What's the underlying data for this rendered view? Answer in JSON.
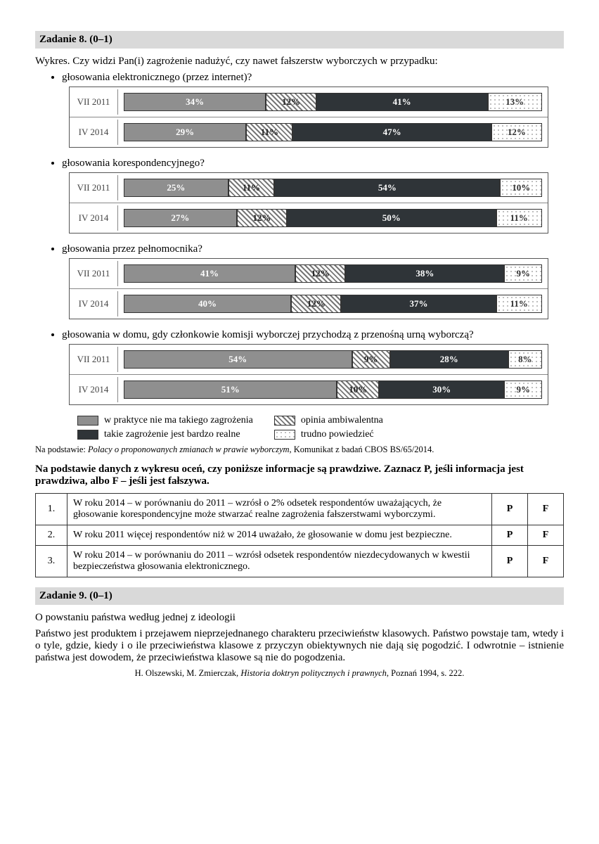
{
  "task8": {
    "header": "Zadanie 8. (0–1)",
    "intro": "Wykres. Czy widzi Pan(i) zagrożenie nadużyć, czy nawet fałszerstw wyborczych w przypadku:",
    "charts": [
      {
        "question": "głosowania elektronicznego (przez internet)?",
        "rows": [
          {
            "label": "VII 2011",
            "vals": [
              34,
              12,
              41,
              13
            ]
          },
          {
            "label": "IV 2014",
            "vals": [
              29,
              11,
              47,
              12
            ]
          }
        ]
      },
      {
        "question": "głosowania korespondencyjnego?",
        "rows": [
          {
            "label": "VII 2011",
            "vals": [
              25,
              11,
              54,
              10
            ]
          },
          {
            "label": "IV 2014",
            "vals": [
              27,
              12,
              50,
              11
            ]
          }
        ]
      },
      {
        "question": "głosowania przez pełnomocnika?",
        "rows": [
          {
            "label": "VII 2011",
            "vals": [
              41,
              12,
              38,
              9
            ]
          },
          {
            "label": "IV 2014",
            "vals": [
              40,
              12,
              37,
              11
            ]
          }
        ]
      },
      {
        "question": "głosowania w domu, gdy członkowie komisji wyborczej przychodzą z przenośną urną wyborczą?",
        "rows": [
          {
            "label": "VII 2011",
            "vals": [
              54,
              9,
              28,
              8
            ]
          },
          {
            "label": "IV 2014",
            "vals": [
              51,
              10,
              30,
              9
            ]
          }
        ]
      }
    ],
    "legend": {
      "a": "w praktyce nie ma takiego zagrożenia",
      "b": "opinia ambiwalentna",
      "c": "takie zagrożenie jest bardzo realne",
      "d": "trudno powiedzieć"
    },
    "source_prefix": "Na podstawie: ",
    "source_italic": "Polacy o proponowanych zmianach w prawie wyborczym",
    "source_suffix": ", Komunikat z badań CBOS BS/65/2014.",
    "instruction": "Na podstawie danych z wykresu oceń, czy poniższe informacje są prawdziwe. Zaznacz P, jeśli informacja jest prawdziwa, albo F – jeśli jest fałszywa.",
    "table": [
      "W roku 2014 – w porównaniu do 2011 – wzrósł o 2% odsetek respondentów uważających, że głosowanie korespondencyjne może stwarzać realne zagrożenia fałszerstwami wyborczymi.",
      "W roku 2011 więcej respondentów niż w 2014 uważało, że głosowanie w domu jest bezpieczne.",
      "W roku 2014 – w porównaniu do 2011 – wzrósł odsetek respondentów niezdecydowanych w kwestii bezpieczeństwa głosowania elektronicznego."
    ],
    "p": "P",
    "f": "F"
  },
  "task9": {
    "header": "Zadanie 9. (0–1)",
    "title": "O powstaniu państwa według jednej z ideologii",
    "body": "Państwo jest produktem i przejawem nieprzejednanego charakteru przeciwieństw klasowych. Państwo powstaje tam, wtedy i o tyle, gdzie, kiedy i o ile przeciwieństwa klasowe z przyczyn obiektywnych nie dają się pogodzić. I odwrotnie – istnienie państwa jest dowodem, że przeciwieństwa klasowe są nie do pogodzenia.",
    "citation_prefix": "H. Olszewski, M. Zmierczak, ",
    "citation_italic": "Historia doktryn politycznych i prawnych",
    "citation_suffix": ", Poznań 1994, s. 222."
  },
  "colors": {
    "seg_a": "#8f8f8f",
    "seg_c": "#2f3438",
    "border": "#333333"
  }
}
